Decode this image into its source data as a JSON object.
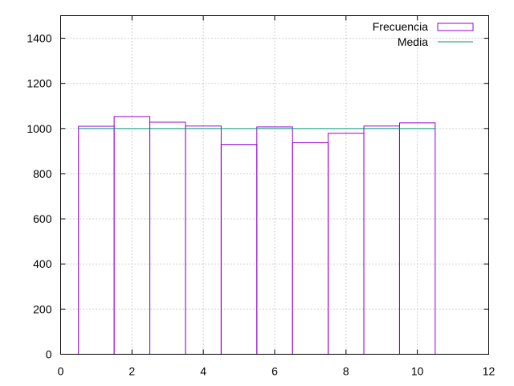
{
  "chart_data": {
    "type": "bar",
    "x": [
      1,
      2,
      3,
      4,
      5,
      6,
      7,
      8,
      9,
      10
    ],
    "series": [
      {
        "name": "Frecuencia",
        "values": [
          1010,
          1053,
          1028,
          1011,
          929,
          1007,
          937,
          979,
          1011,
          1025
        ]
      }
    ],
    "mean_line": {
      "name": "Media",
      "value": 1000,
      "x_range": [
        0.5,
        10.5
      ]
    },
    "bar_width": 1,
    "xlim": [
      0,
      12
    ],
    "ylim": [
      0,
      1500
    ],
    "x_ticks": [
      0,
      2,
      4,
      6,
      8,
      10,
      12
    ],
    "y_ticks": [
      0,
      200,
      400,
      600,
      800,
      1000,
      1200,
      1400
    ],
    "grid": true,
    "legend_position": "top-right",
    "colors": {
      "bars": "#9400d3",
      "mean": "#009e73",
      "grid": "#a0a0a0",
      "axis": "#000000"
    }
  }
}
